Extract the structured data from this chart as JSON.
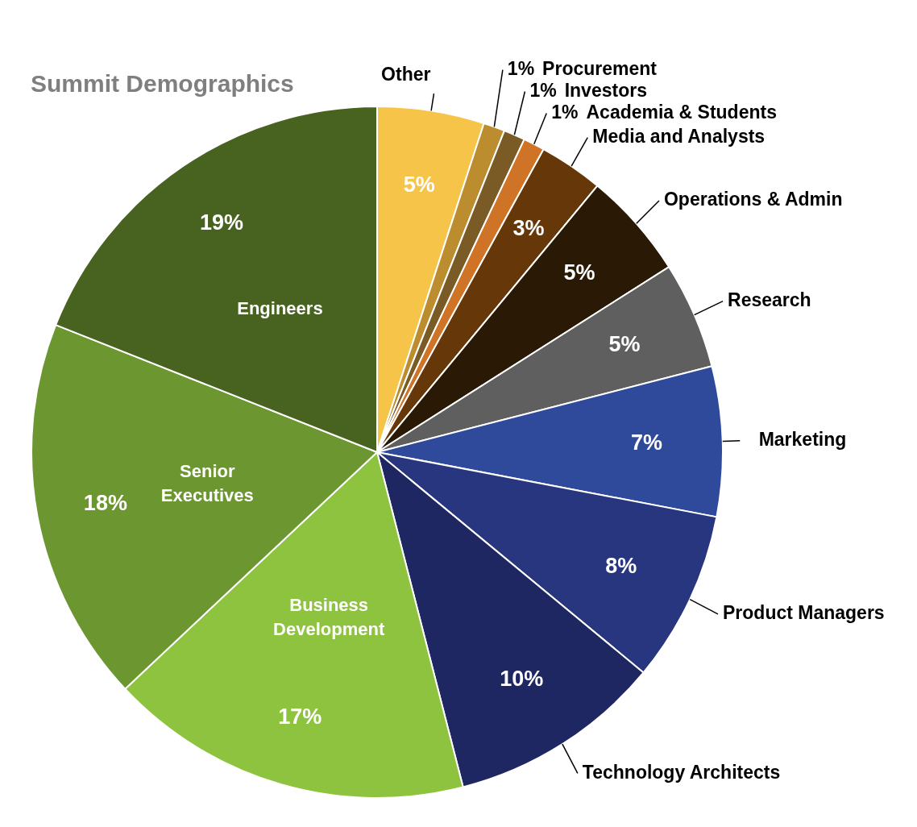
{
  "chart_data": {
    "type": "pie",
    "title": "Summit Demographics",
    "categories": [
      "Other",
      "Procurement",
      "Investors",
      "Academia & Students",
      "Media and Analysts",
      "Operations & Admin",
      "Research",
      "Marketing",
      "Product Managers",
      "Technology Architects",
      "Business Development",
      "Senior Executives",
      "Engineers"
    ],
    "values": [
      5,
      1,
      1,
      1,
      3,
      5,
      5,
      7,
      8,
      10,
      17,
      18,
      19
    ],
    "colors": [
      "#f7c44a",
      "#bb8d2f",
      "#7a5a25",
      "#cf7426",
      "#663809",
      "#2a1a05",
      "#5f5f5f",
      "#2f4a9b",
      "#27367f",
      "#1e2761",
      "#8dc33f",
      "#6c9630",
      "#47631f"
    ],
    "value_labels": [
      "5%",
      "1%",
      "1%",
      "1%",
      "3%",
      "5%",
      "5%",
      "7%",
      "8%",
      "10%",
      "17%",
      "18%",
      "19%"
    ],
    "legend": false
  }
}
